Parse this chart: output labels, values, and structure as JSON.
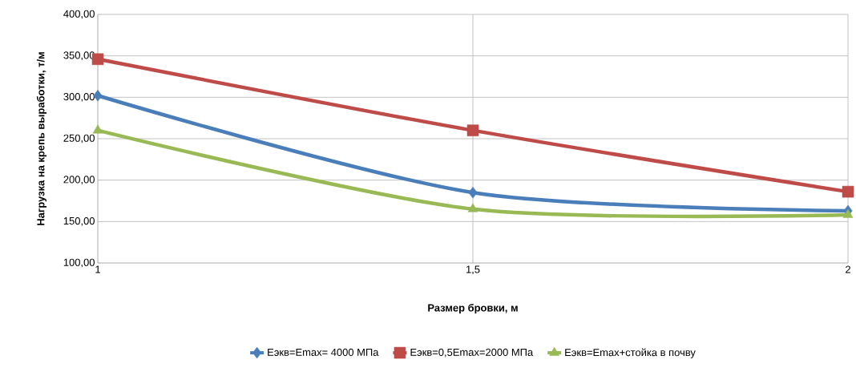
{
  "chart_data": {
    "type": "line",
    "xlabel": "Размер бровки, м",
    "ylabel": "Нагрузка на крепь выработки, т/м",
    "x": [
      1,
      1.5,
      2
    ],
    "xlim": [
      1,
      2
    ],
    "xticks": [
      {
        "value": 1,
        "label": "1"
      },
      {
        "value": 1.5,
        "label": "1,5"
      },
      {
        "value": 2,
        "label": "2"
      }
    ],
    "ylim": [
      100,
      400
    ],
    "yticks": [
      {
        "value": 100,
        "label": "100,00"
      },
      {
        "value": 150,
        "label": "150,00"
      },
      {
        "value": 200,
        "label": "200,00"
      },
      {
        "value": 250,
        "label": "250,00"
      },
      {
        "value": 300,
        "label": "300,00"
      },
      {
        "value": 350,
        "label": "350,00"
      },
      {
        "value": 400,
        "label": "400,00"
      }
    ],
    "grid": true,
    "legend": "bottom",
    "series": [
      {
        "name": "Еэкв=Emax= 4000 МПа",
        "color": "#4a7ebb",
        "marker": "diamond",
        "values": [
          302,
          185,
          163
        ]
      },
      {
        "name": "Еэкв=0,5Emax=2000 МПа",
        "color": "#be4b48",
        "marker": "square",
        "values": [
          346,
          260,
          186
        ]
      },
      {
        "name": "Еэкв=Emax+стойка в почву",
        "color": "#98b954",
        "marker": "triangle",
        "values": [
          260,
          165,
          158
        ]
      }
    ]
  }
}
